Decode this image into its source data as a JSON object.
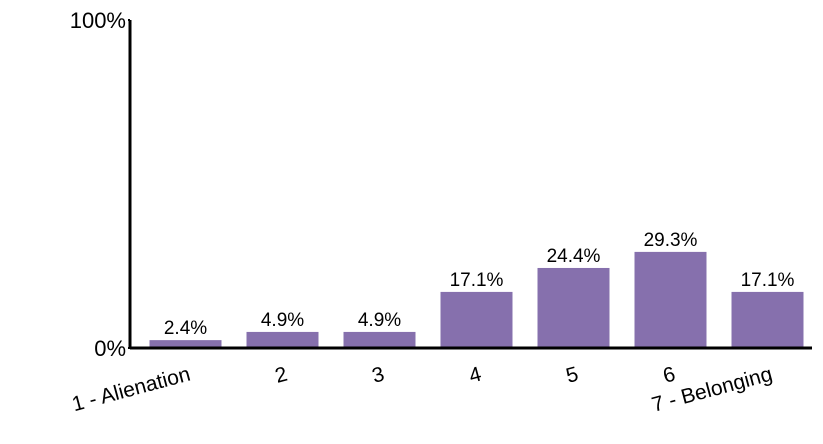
{
  "chart_data": {
    "type": "bar",
    "categories": [
      "1 - Alienation",
      "2",
      "3",
      "4",
      "5",
      "6",
      "7 - Belonging"
    ],
    "values": [
      2.4,
      4.9,
      4.9,
      17.1,
      24.4,
      29.3,
      17.1
    ],
    "value_labels": [
      "2.4%",
      "4.9%",
      "4.9%",
      "17.1%",
      "24.4%",
      "29.3%",
      "17.1%"
    ],
    "color": "#8670ad",
    "ylim": [
      0,
      100
    ],
    "yticks": [
      {
        "value": 0,
        "label": "0%"
      },
      {
        "value": 100,
        "label": "100%"
      }
    ]
  }
}
